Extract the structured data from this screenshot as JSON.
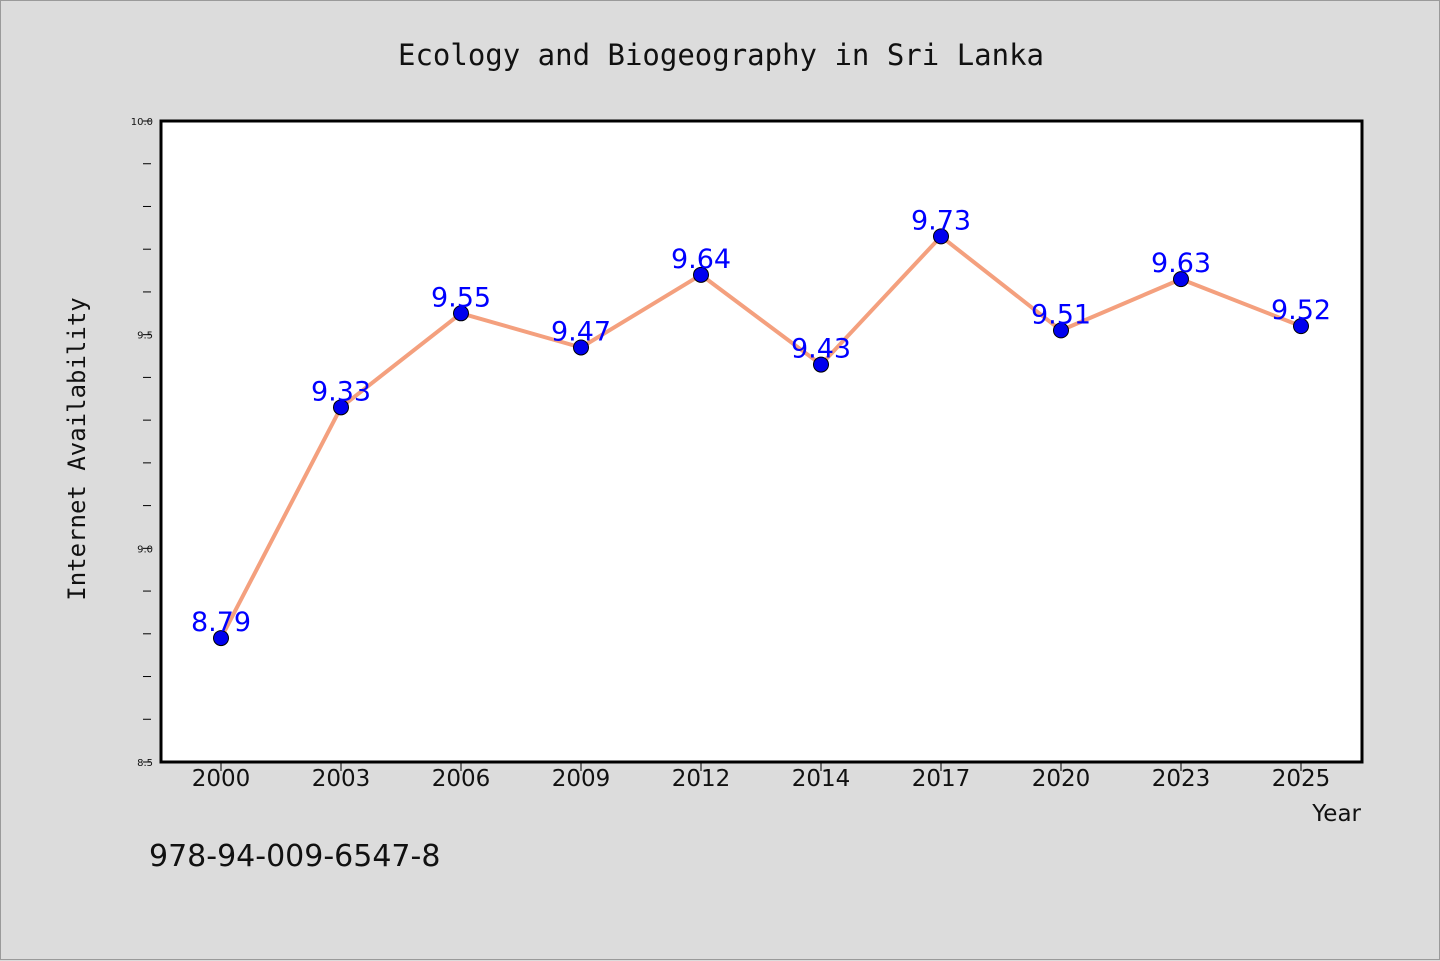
{
  "chart_data": {
    "type": "line",
    "title": "Ecology and Biogeography in Sri Lanka",
    "xlabel": "Year",
    "ylabel": "Internet Availability",
    "categories": [
      "2000",
      "2003",
      "2006",
      "2009",
      "2012",
      "2014",
      "2017",
      "2020",
      "2023",
      "2025"
    ],
    "series": [
      {
        "values": [
          8.79,
          9.33,
          9.55,
          9.47,
          9.64,
          9.43,
          9.73,
          9.51,
          9.63,
          9.52
        ],
        "line_color": "#f4a07e",
        "marker_color": "#0000ee",
        "label_color": "#0000ff"
      }
    ],
    "ylim": [
      8.5,
      10.0
    ],
    "y_major_ticks": [
      "8.5",
      "9.0",
      "9.5",
      "10.0"
    ],
    "y_minor_step": 0.1,
    "grid": false,
    "legend": "none"
  },
  "footer": {
    "isbn": "978-94-009-6547-8"
  }
}
